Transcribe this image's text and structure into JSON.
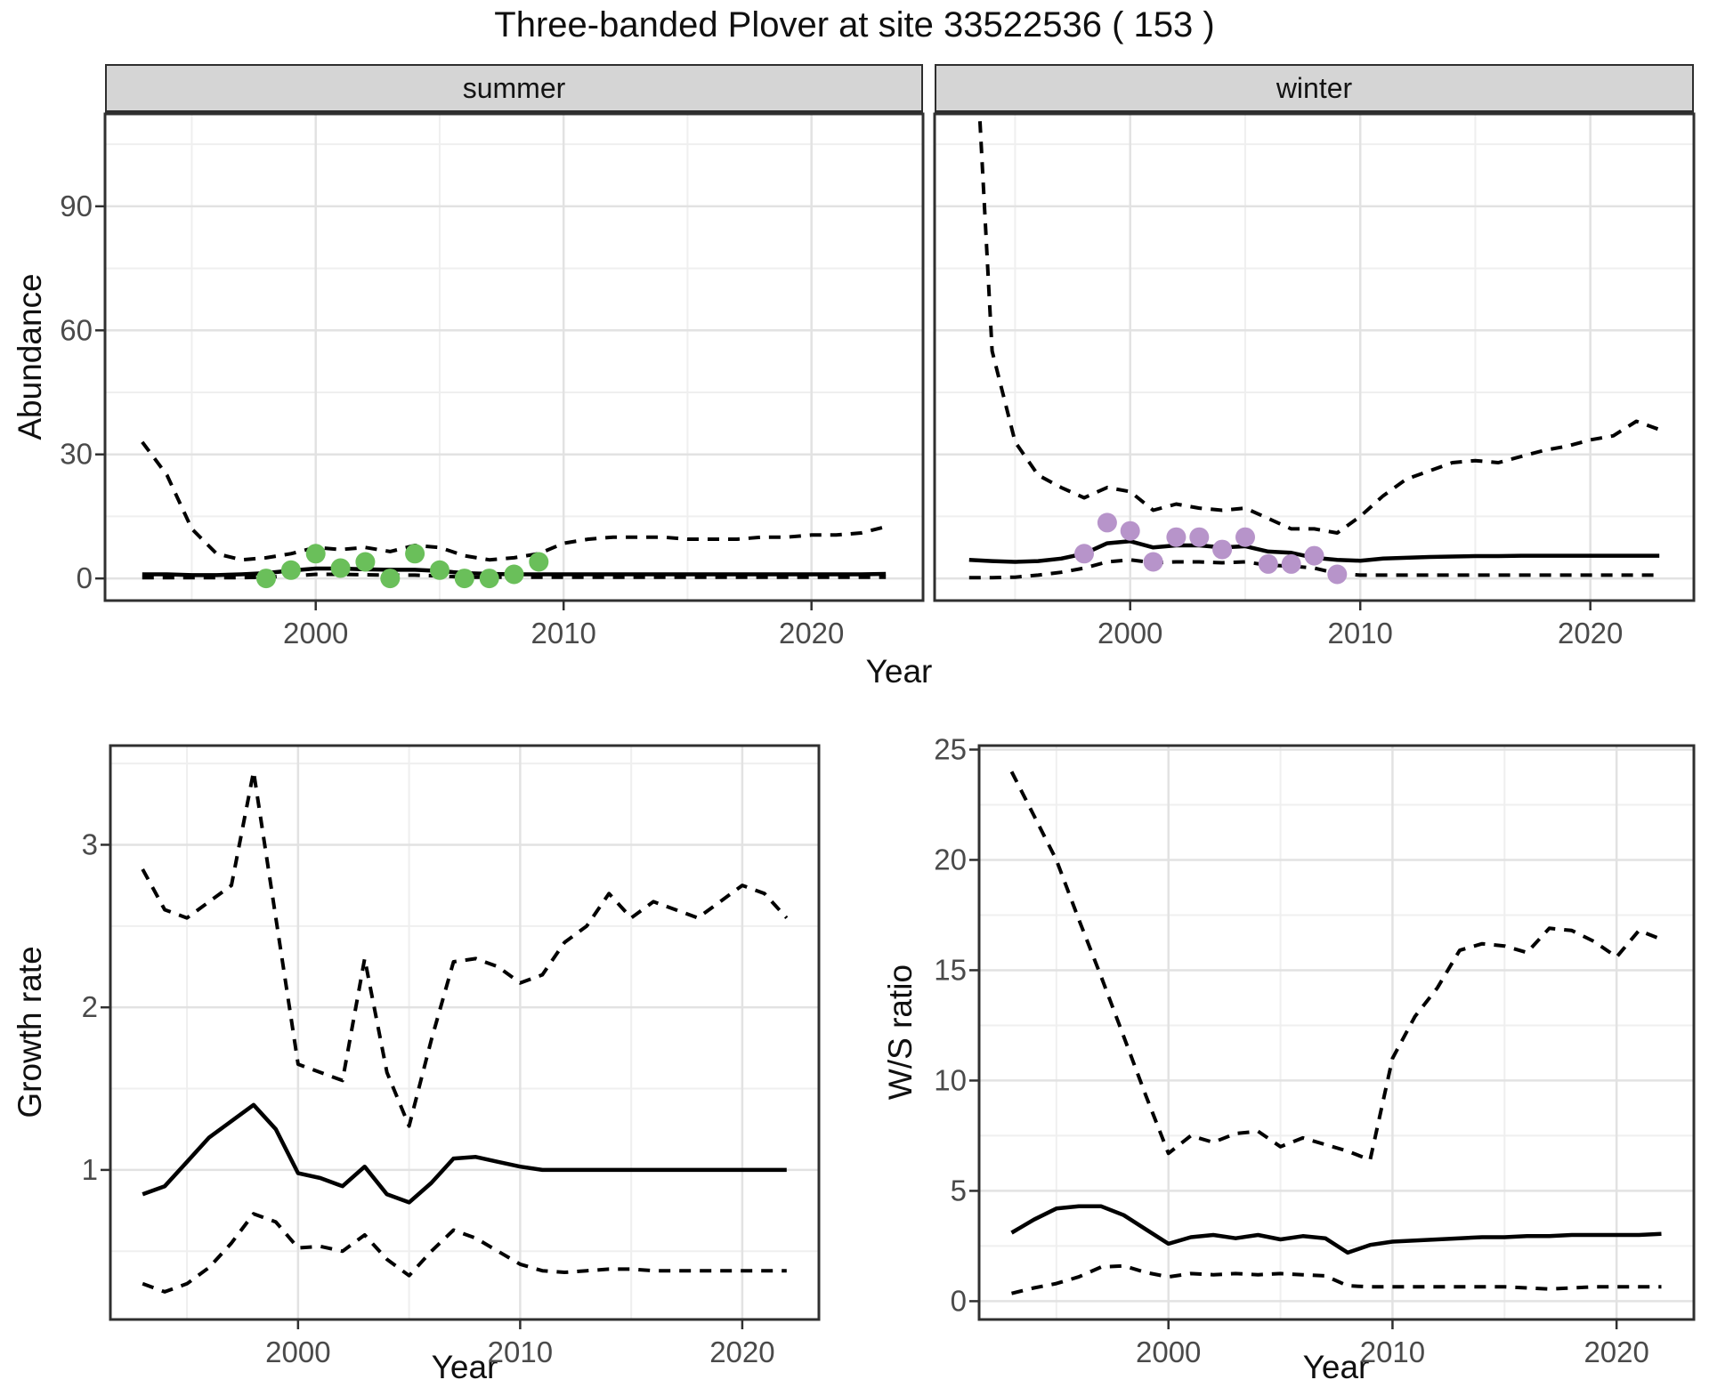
{
  "title": "Three-banded Plover at site 33522536 ( 153 )",
  "colors": {
    "strip_background": "#d5d5d5",
    "panel_border": "#303030",
    "grid_major": "#e2e2e2",
    "grid_minor": "#efefef",
    "line": "#000000",
    "tick_text": "#4a4a4a",
    "summer_points": "#6abf5a",
    "winter_points": "#b794ca"
  },
  "chart_data": [
    {
      "type": "line",
      "name": "summer_abundance",
      "facet_label": "summer",
      "xlabel": "Year",
      "ylabel": "Abundance",
      "xticks": [
        2000,
        2010,
        2020
      ],
      "yticks": [
        0,
        30,
        60,
        90
      ],
      "xlim": [
        1991.5,
        2024.5
      ],
      "ylim": [
        -5.35,
        112.35
      ],
      "grid": true,
      "legend": "none",
      "x": [
        1993,
        1994,
        1995,
        1996,
        1997,
        1998,
        1999,
        2000,
        2001,
        2002,
        2003,
        2004,
        2005,
        2006,
        2007,
        2008,
        2009,
        2010,
        2011,
        2012,
        2013,
        2014,
        2015,
        2016,
        2017,
        2018,
        2019,
        2020,
        2021,
        2022,
        2023
      ],
      "series": [
        {
          "name": "upper_ci",
          "style": "dashed",
          "values": [
            33,
            25,
            12,
            6,
            4.5,
            5,
            6,
            7.5,
            7,
            7.5,
            6.5,
            8,
            7.5,
            5.5,
            4.5,
            5,
            6,
            8.5,
            9.5,
            10,
            10,
            10,
            9.5,
            9.5,
            9.5,
            10,
            10,
            10.5,
            10.5,
            11,
            12.5
          ]
        },
        {
          "name": "median",
          "style": "solid",
          "values": [
            1,
            1,
            0.8,
            0.8,
            1,
            1.3,
            1.9,
            2.4,
            2.4,
            2.2,
            2.1,
            2.1,
            1.8,
            1.3,
            1.1,
            1,
            1,
            1,
            1,
            1,
            1,
            1,
            1,
            1,
            1,
            1,
            1,
            1,
            1,
            1,
            1.1
          ]
        },
        {
          "name": "lower_ci",
          "style": "dashed",
          "values": [
            0.2,
            0.2,
            0.2,
            0.2,
            0.2,
            0.3,
            0.6,
            1,
            1,
            0.9,
            0.8,
            0.8,
            0.6,
            0.3,
            0.3,
            0.3,
            0.3,
            0.3,
            0.3,
            0.3,
            0.3,
            0.3,
            0.3,
            0.3,
            0.3,
            0.3,
            0.3,
            0.3,
            0.3,
            0.3,
            0.3
          ]
        }
      ],
      "points": {
        "name": "observed_summer_counts",
        "color": "#6abf5a",
        "x": [
          1998,
          1999,
          2000,
          2001,
          2002,
          2003,
          2004,
          2005,
          2006,
          2007,
          2008,
          2009
        ],
        "y": [
          0,
          2,
          6,
          2.5,
          4,
          0,
          6,
          2,
          0,
          0,
          1,
          4
        ]
      }
    },
    {
      "type": "line",
      "name": "winter_abundance",
      "facet_label": "winter",
      "xlabel": "Year",
      "ylabel": "Abundance",
      "xticks": [
        2000,
        2010,
        2020
      ],
      "yticks": [
        0,
        30,
        60,
        90
      ],
      "xlim": [
        1991.5,
        2024.5
      ],
      "ylim": [
        -5.35,
        112.35
      ],
      "grid": true,
      "legend": "none",
      "x": [
        1993,
        1994,
        1995,
        1996,
        1997,
        1998,
        1999,
        2000,
        2001,
        2002,
        2003,
        2004,
        2005,
        2006,
        2007,
        2008,
        2009,
        2010,
        2011,
        2012,
        2013,
        2014,
        2015,
        2016,
        2017,
        2018,
        2019,
        2020,
        2021,
        2022,
        2023
      ],
      "series": [
        {
          "name": "upper_ci",
          "style": "dashed",
          "values": [
            160,
            55,
            33,
            25,
            22,
            19.5,
            22,
            21,
            16.5,
            18,
            17,
            16.5,
            17,
            14.5,
            12,
            12,
            11,
            15,
            20,
            24,
            26,
            28,
            28.5,
            28,
            29.5,
            31,
            32,
            33.5,
            34.5,
            38,
            36
          ]
        },
        {
          "name": "median",
          "style": "solid",
          "values": [
            4.5,
            4.2,
            4,
            4.2,
            4.8,
            6,
            8.5,
            9,
            7.5,
            8,
            8,
            7.5,
            7.8,
            6.5,
            6.2,
            5,
            4.5,
            4.3,
            4.8,
            5,
            5.2,
            5.3,
            5.4,
            5.4,
            5.5,
            5.5,
            5.5,
            5.5,
            5.5,
            5.5,
            5.5
          ]
        },
        {
          "name": "lower_ci",
          "style": "dashed",
          "values": [
            0.2,
            0.2,
            0.3,
            0.8,
            1.5,
            2.5,
            4,
            4.5,
            3.8,
            4,
            4,
            3.8,
            4,
            3.2,
            3,
            2.5,
            1.2,
            0.8,
            0.8,
            0.8,
            0.8,
            0.8,
            0.8,
            0.8,
            0.8,
            0.8,
            0.8,
            0.8,
            0.8,
            0.8,
            0.8
          ]
        }
      ],
      "points": {
        "name": "observed_winter_counts",
        "color": "#b794ca",
        "x": [
          1998,
          1999,
          2000,
          2001,
          2002,
          2003,
          2004,
          2005,
          2006,
          2007,
          2008,
          2009
        ],
        "y": [
          6,
          13.5,
          11.5,
          4,
          10,
          10,
          7,
          10,
          3.5,
          3.5,
          5.5,
          1
        ]
      }
    },
    {
      "type": "line",
      "name": "growth_rate",
      "facet_label": "",
      "xlabel": "Year",
      "ylabel": "Growth rate",
      "xticks": [
        2000,
        2010,
        2020
      ],
      "yticks": [
        1,
        2,
        3
      ],
      "xlim": [
        1991.55,
        2023.45
      ],
      "ylim": [
        0.08,
        3.61
      ],
      "grid": true,
      "legend": "none",
      "x": [
        1993,
        1994,
        1995,
        1996,
        1997,
        1998,
        1999,
        2000,
        2001,
        2002,
        2003,
        2004,
        2005,
        2006,
        2007,
        2008,
        2009,
        2010,
        2011,
        2012,
        2013,
        2014,
        2015,
        2016,
        2017,
        2018,
        2019,
        2020,
        2021,
        2022
      ],
      "series": [
        {
          "name": "upper_ci",
          "style": "dashed",
          "values": [
            2.85,
            2.6,
            2.55,
            2.65,
            2.75,
            3.45,
            2.55,
            1.65,
            1.6,
            1.55,
            2.3,
            1.6,
            1.27,
            1.8,
            2.28,
            2.3,
            2.25,
            2.15,
            2.2,
            2.4,
            2.5,
            2.7,
            2.55,
            2.65,
            2.6,
            2.55,
            2.65,
            2.75,
            2.7,
            2.55
          ]
        },
        {
          "name": "median",
          "style": "solid",
          "values": [
            0.85,
            0.9,
            1.05,
            1.2,
            1.3,
            1.4,
            1.25,
            0.98,
            0.95,
            0.9,
            1.02,
            0.85,
            0.8,
            0.92,
            1.07,
            1.08,
            1.05,
            1.02,
            1,
            1,
            1,
            1,
            1,
            1,
            1,
            1,
            1,
            1,
            1,
            1
          ]
        },
        {
          "name": "lower_ci",
          "style": "dashed",
          "values": [
            0.3,
            0.25,
            0.3,
            0.4,
            0.55,
            0.73,
            0.68,
            0.52,
            0.53,
            0.5,
            0.6,
            0.45,
            0.35,
            0.5,
            0.63,
            0.58,
            0.5,
            0.42,
            0.38,
            0.37,
            0.38,
            0.39,
            0.39,
            0.38,
            0.38,
            0.38,
            0.38,
            0.38,
            0.38,
            0.38
          ]
        }
      ],
      "points": null
    },
    {
      "type": "line",
      "name": "winter_summer_ratio",
      "facet_label": "",
      "xlabel": "Year",
      "ylabel": "W/S ratio",
      "xticks": [
        2000,
        2010,
        2020
      ],
      "yticks": [
        0,
        5,
        10,
        15,
        20,
        25
      ],
      "xlim": [
        1991.55,
        2023.45
      ],
      "ylim": [
        -0.83,
        25.18
      ],
      "grid": true,
      "legend": "none",
      "x": [
        1993,
        1994,
        1995,
        1996,
        1997,
        1998,
        1999,
        2000,
        2001,
        2002,
        2003,
        2004,
        2005,
        2006,
        2007,
        2008,
        2009,
        2010,
        2011,
        2012,
        2013,
        2014,
        2015,
        2016,
        2017,
        2018,
        2019,
        2020,
        2021,
        2022
      ],
      "series": [
        {
          "name": "upper_ci",
          "style": "dashed",
          "values": [
            24,
            22,
            20,
            17.3,
            14.7,
            12,
            9.3,
            6.7,
            7.5,
            7.2,
            7.6,
            7.7,
            7,
            7.4,
            7.1,
            6.8,
            6.4,
            11,
            12.9,
            14.2,
            15.9,
            16.2,
            16.1,
            15.8,
            16.9,
            16.8,
            16.3,
            15.6,
            16.8,
            16.4
          ]
        },
        {
          "name": "median",
          "style": "solid",
          "values": [
            3.1,
            3.7,
            4.2,
            4.3,
            4.3,
            3.9,
            3.25,
            2.6,
            2.9,
            3,
            2.85,
            3,
            2.8,
            2.95,
            2.85,
            2.2,
            2.55,
            2.7,
            2.75,
            2.8,
            2.85,
            2.9,
            2.9,
            2.95,
            2.95,
            3,
            3,
            3,
            3,
            3.05
          ]
        },
        {
          "name": "lower_ci",
          "style": "dashed",
          "values": [
            0.35,
            0.6,
            0.8,
            1.1,
            1.55,
            1.6,
            1.3,
            1.1,
            1.25,
            1.2,
            1.25,
            1.2,
            1.25,
            1.2,
            1.15,
            0.7,
            0.65,
            0.65,
            0.65,
            0.65,
            0.65,
            0.65,
            0.65,
            0.6,
            0.55,
            0.6,
            0.65,
            0.65,
            0.65,
            0.65
          ]
        }
      ],
      "points": null
    }
  ]
}
